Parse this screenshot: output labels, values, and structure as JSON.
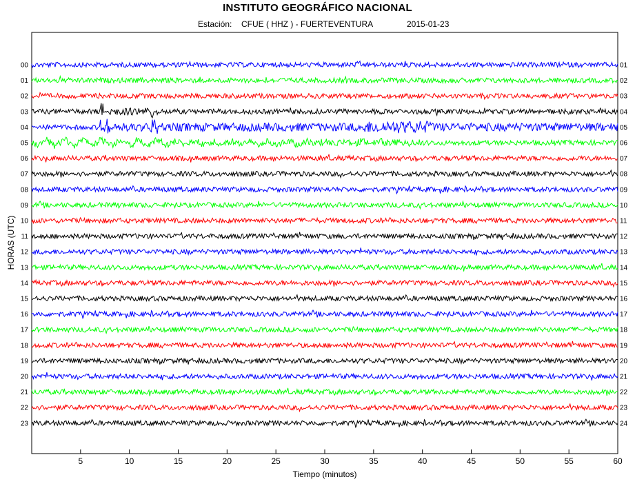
{
  "header": {
    "title": "INSTITUTO GEOGRÁFICO NACIONAL",
    "station_label": "Estación:",
    "station": "CFUE ( HHZ ) - FUERTEVENTURA",
    "date": "2015-01-23"
  },
  "chart_data": {
    "type": "line",
    "xlabel": "Tiempo (minutos)",
    "ylabel": "HORAS (UTC)",
    "xlim": [
      0,
      60
    ],
    "xticks": [
      5,
      10,
      15,
      20,
      25,
      30,
      35,
      40,
      45,
      50,
      55,
      60
    ],
    "grid": false,
    "colors": [
      "#0000ff",
      "#00ff00",
      "#ff0000",
      "#000000"
    ],
    "left_labels": [
      "00",
      "01",
      "02",
      "03",
      "04",
      "05",
      "06",
      "07",
      "08",
      "09",
      "10",
      "11",
      "12",
      "13",
      "14",
      "15",
      "16",
      "17",
      "18",
      "19",
      "20",
      "21",
      "22",
      "23"
    ],
    "right_labels": [
      "01",
      "02",
      "03",
      "04",
      "05",
      "06",
      "07",
      "08",
      "09",
      "10",
      "11",
      "12",
      "13",
      "14",
      "15",
      "16",
      "17",
      "18",
      "19",
      "20",
      "21",
      "22",
      "23",
      "24"
    ],
    "events": [
      {
        "hour": 3,
        "minute_start": 7,
        "minute_end": 13,
        "note": "spikes"
      },
      {
        "hour": 4,
        "minute_start": 7,
        "minute_end": 60,
        "note": "elevated amplitude, bursts near 13 and 35-40"
      },
      {
        "hour": 5,
        "minute_start": 0,
        "minute_end": 40,
        "note": "long-period oscillation"
      }
    ]
  }
}
